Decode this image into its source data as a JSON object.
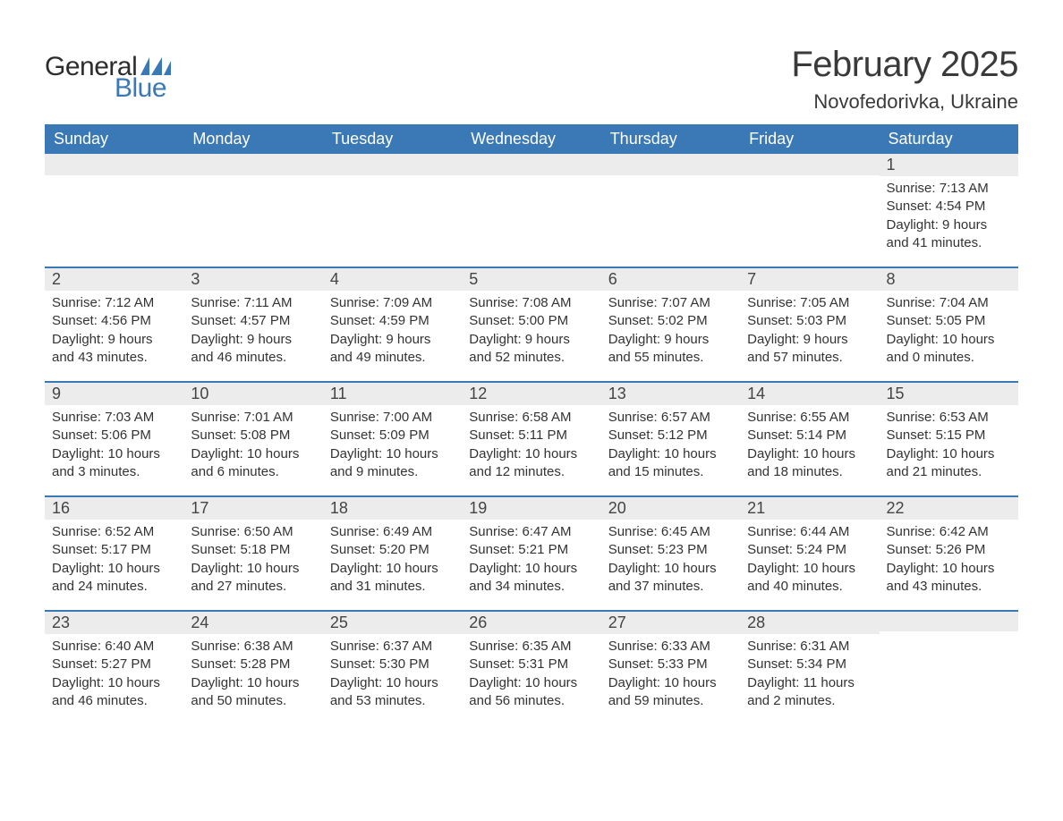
{
  "brand": {
    "text_general": "General",
    "text_blue": "Blue",
    "flag_color": "#3a78b6"
  },
  "header": {
    "month_title": "February 2025",
    "location": "Novofedorivka, Ukraine"
  },
  "calendar": {
    "type": "table",
    "header_bg": "#3a78b6",
    "header_text_color": "#ffffff",
    "daynum_bg": "#ececec",
    "row_border_color": "#3a78b6",
    "background_color": "#ffffff",
    "text_color": "#333333",
    "title_fontsize": 40,
    "location_fontsize": 22,
    "header_fontsize": 18,
    "daynum_fontsize": 18,
    "detail_fontsize": 15,
    "columns": [
      "Sunday",
      "Monday",
      "Tuesday",
      "Wednesday",
      "Thursday",
      "Friday",
      "Saturday"
    ],
    "weeks": [
      [
        {
          "day": "",
          "sunrise": "",
          "sunset": "",
          "daylight": ""
        },
        {
          "day": "",
          "sunrise": "",
          "sunset": "",
          "daylight": ""
        },
        {
          "day": "",
          "sunrise": "",
          "sunset": "",
          "daylight": ""
        },
        {
          "day": "",
          "sunrise": "",
          "sunset": "",
          "daylight": ""
        },
        {
          "day": "",
          "sunrise": "",
          "sunset": "",
          "daylight": ""
        },
        {
          "day": "",
          "sunrise": "",
          "sunset": "",
          "daylight": ""
        },
        {
          "day": "1",
          "sunrise": "Sunrise: 7:13 AM",
          "sunset": "Sunset: 4:54 PM",
          "daylight": "Daylight: 9 hours and 41 minutes."
        }
      ],
      [
        {
          "day": "2",
          "sunrise": "Sunrise: 7:12 AM",
          "sunset": "Sunset: 4:56 PM",
          "daylight": "Daylight: 9 hours and 43 minutes."
        },
        {
          "day": "3",
          "sunrise": "Sunrise: 7:11 AM",
          "sunset": "Sunset: 4:57 PM",
          "daylight": "Daylight: 9 hours and 46 minutes."
        },
        {
          "day": "4",
          "sunrise": "Sunrise: 7:09 AM",
          "sunset": "Sunset: 4:59 PM",
          "daylight": "Daylight: 9 hours and 49 minutes."
        },
        {
          "day": "5",
          "sunrise": "Sunrise: 7:08 AM",
          "sunset": "Sunset: 5:00 PM",
          "daylight": "Daylight: 9 hours and 52 minutes."
        },
        {
          "day": "6",
          "sunrise": "Sunrise: 7:07 AM",
          "sunset": "Sunset: 5:02 PM",
          "daylight": "Daylight: 9 hours and 55 minutes."
        },
        {
          "day": "7",
          "sunrise": "Sunrise: 7:05 AM",
          "sunset": "Sunset: 5:03 PM",
          "daylight": "Daylight: 9 hours and 57 minutes."
        },
        {
          "day": "8",
          "sunrise": "Sunrise: 7:04 AM",
          "sunset": "Sunset: 5:05 PM",
          "daylight": "Daylight: 10 hours and 0 minutes."
        }
      ],
      [
        {
          "day": "9",
          "sunrise": "Sunrise: 7:03 AM",
          "sunset": "Sunset: 5:06 PM",
          "daylight": "Daylight: 10 hours and 3 minutes."
        },
        {
          "day": "10",
          "sunrise": "Sunrise: 7:01 AM",
          "sunset": "Sunset: 5:08 PM",
          "daylight": "Daylight: 10 hours and 6 minutes."
        },
        {
          "day": "11",
          "sunrise": "Sunrise: 7:00 AM",
          "sunset": "Sunset: 5:09 PM",
          "daylight": "Daylight: 10 hours and 9 minutes."
        },
        {
          "day": "12",
          "sunrise": "Sunrise: 6:58 AM",
          "sunset": "Sunset: 5:11 PM",
          "daylight": "Daylight: 10 hours and 12 minutes."
        },
        {
          "day": "13",
          "sunrise": "Sunrise: 6:57 AM",
          "sunset": "Sunset: 5:12 PM",
          "daylight": "Daylight: 10 hours and 15 minutes."
        },
        {
          "day": "14",
          "sunrise": "Sunrise: 6:55 AM",
          "sunset": "Sunset: 5:14 PM",
          "daylight": "Daylight: 10 hours and 18 minutes."
        },
        {
          "day": "15",
          "sunrise": "Sunrise: 6:53 AM",
          "sunset": "Sunset: 5:15 PM",
          "daylight": "Daylight: 10 hours and 21 minutes."
        }
      ],
      [
        {
          "day": "16",
          "sunrise": "Sunrise: 6:52 AM",
          "sunset": "Sunset: 5:17 PM",
          "daylight": "Daylight: 10 hours and 24 minutes."
        },
        {
          "day": "17",
          "sunrise": "Sunrise: 6:50 AM",
          "sunset": "Sunset: 5:18 PM",
          "daylight": "Daylight: 10 hours and 27 minutes."
        },
        {
          "day": "18",
          "sunrise": "Sunrise: 6:49 AM",
          "sunset": "Sunset: 5:20 PM",
          "daylight": "Daylight: 10 hours and 31 minutes."
        },
        {
          "day": "19",
          "sunrise": "Sunrise: 6:47 AM",
          "sunset": "Sunset: 5:21 PM",
          "daylight": "Daylight: 10 hours and 34 minutes."
        },
        {
          "day": "20",
          "sunrise": "Sunrise: 6:45 AM",
          "sunset": "Sunset: 5:23 PM",
          "daylight": "Daylight: 10 hours and 37 minutes."
        },
        {
          "day": "21",
          "sunrise": "Sunrise: 6:44 AM",
          "sunset": "Sunset: 5:24 PM",
          "daylight": "Daylight: 10 hours and 40 minutes."
        },
        {
          "day": "22",
          "sunrise": "Sunrise: 6:42 AM",
          "sunset": "Sunset: 5:26 PM",
          "daylight": "Daylight: 10 hours and 43 minutes."
        }
      ],
      [
        {
          "day": "23",
          "sunrise": "Sunrise: 6:40 AM",
          "sunset": "Sunset: 5:27 PM",
          "daylight": "Daylight: 10 hours and 46 minutes."
        },
        {
          "day": "24",
          "sunrise": "Sunrise: 6:38 AM",
          "sunset": "Sunset: 5:28 PM",
          "daylight": "Daylight: 10 hours and 50 minutes."
        },
        {
          "day": "25",
          "sunrise": "Sunrise: 6:37 AM",
          "sunset": "Sunset: 5:30 PM",
          "daylight": "Daylight: 10 hours and 53 minutes."
        },
        {
          "day": "26",
          "sunrise": "Sunrise: 6:35 AM",
          "sunset": "Sunset: 5:31 PM",
          "daylight": "Daylight: 10 hours and 56 minutes."
        },
        {
          "day": "27",
          "sunrise": "Sunrise: 6:33 AM",
          "sunset": "Sunset: 5:33 PM",
          "daylight": "Daylight: 10 hours and 59 minutes."
        },
        {
          "day": "28",
          "sunrise": "Sunrise: 6:31 AM",
          "sunset": "Sunset: 5:34 PM",
          "daylight": "Daylight: 11 hours and 2 minutes."
        },
        {
          "day": "",
          "sunrise": "",
          "sunset": "",
          "daylight": ""
        }
      ]
    ]
  }
}
